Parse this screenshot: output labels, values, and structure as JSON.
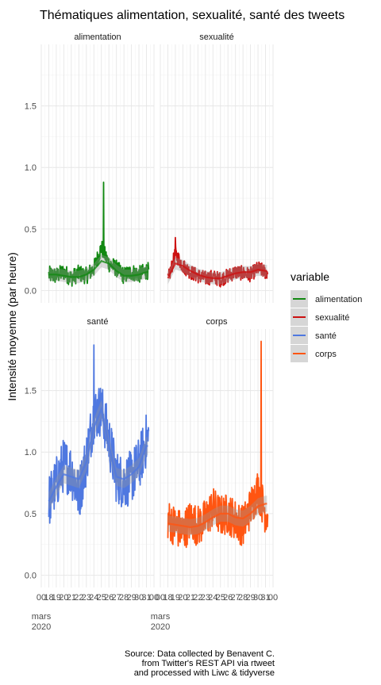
{
  "chart_data": {
    "type": "line",
    "title": "Thématiques alimentation, sexualité, santé des tweets",
    "ylabel": "Intensité moyenne (par heure)",
    "xlabel": "",
    "ylim": [
      -0.1,
      2.0
    ],
    "y_ticks": [
      "0.0",
      "0.5",
      "1.0",
      "1.5"
    ],
    "x_tick_labels": [
      "00",
      "18",
      "19",
      "20",
      "21",
      "22",
      "23",
      "24",
      "25",
      "26",
      "27",
      "28",
      "29",
      "30",
      "31",
      "00"
    ],
    "x_month_label": "mars",
    "x_year_label": "2020",
    "grid": true,
    "legend": {
      "title": "variable",
      "position": "right",
      "entries": [
        {
          "name": "alimentation",
          "color": "#118811"
        },
        {
          "name": "sexualité",
          "color": "#cc1111"
        },
        {
          "name": "santé",
          "color": "#4f78e0"
        },
        {
          "name": "corps",
          "color": "#ff5511"
        }
      ]
    },
    "series": [
      {
        "name": "alimentation",
        "color": "#118811",
        "x": [
          18,
          19,
          20,
          21,
          22,
          23,
          24,
          25,
          26,
          27,
          28,
          29,
          30,
          31
        ],
        "values": [
          0.13,
          0.12,
          0.15,
          0.1,
          0.14,
          0.12,
          0.18,
          0.35,
          0.22,
          0.18,
          0.12,
          0.15,
          0.13,
          0.16
        ],
        "trend": [
          0.13,
          0.13,
          0.12,
          0.11,
          0.11,
          0.13,
          0.17,
          0.24,
          0.22,
          0.16,
          0.12,
          0.12,
          0.13,
          0.15
        ],
        "peak": {
          "x": 25.3,
          "y": 0.88
        }
      },
      {
        "name": "sexualité",
        "color": "#cc1111",
        "x": [
          18,
          19,
          20,
          21,
          22,
          23,
          24,
          25,
          26,
          27,
          28,
          29,
          30,
          31
        ],
        "values": [
          0.08,
          0.3,
          0.2,
          0.15,
          0.12,
          0.1,
          0.11,
          0.09,
          0.12,
          0.15,
          0.14,
          0.13,
          0.18,
          0.15
        ],
        "trend": [
          0.1,
          0.22,
          0.2,
          0.16,
          0.13,
          0.11,
          0.1,
          0.1,
          0.12,
          0.14,
          0.15,
          0.15,
          0.17,
          0.16
        ],
        "peak": {
          "x": 19.0,
          "y": 0.43
        }
      },
      {
        "name": "santé",
        "color": "#4f78e0",
        "x": [
          18,
          19,
          20,
          21,
          22,
          23,
          24,
          25,
          26,
          27,
          28,
          29,
          30,
          31
        ],
        "values": [
          0.6,
          0.75,
          0.9,
          0.85,
          0.65,
          0.95,
          1.3,
          1.35,
          1.1,
          0.8,
          0.75,
          0.8,
          0.9,
          1.1
        ],
        "trend": [
          0.6,
          0.72,
          0.82,
          0.8,
          0.78,
          0.92,
          1.2,
          1.35,
          1.05,
          0.8,
          0.78,
          0.82,
          0.88,
          1.05
        ],
        "peak": {
          "x": 24.0,
          "y": 1.87
        }
      },
      {
        "name": "corps",
        "color": "#ff5511",
        "x": [
          18,
          19,
          20,
          21,
          22,
          23,
          24,
          25,
          26,
          27,
          28,
          29,
          30,
          31
        ],
        "values": [
          0.45,
          0.4,
          0.35,
          0.45,
          0.4,
          0.45,
          0.55,
          0.48,
          0.5,
          0.45,
          0.4,
          0.55,
          0.7,
          0.5
        ],
        "trend": [
          0.42,
          0.41,
          0.4,
          0.39,
          0.4,
          0.43,
          0.47,
          0.5,
          0.5,
          0.47,
          0.46,
          0.5,
          0.56,
          0.58
        ],
        "peak": {
          "x": 30.4,
          "y": 1.9
        }
      }
    ]
  },
  "caption": [
    "Source: Data collected by Benavent C.",
    "from Twitter's REST API via rtweet",
    "and processed with Liwc & tidyverse"
  ]
}
